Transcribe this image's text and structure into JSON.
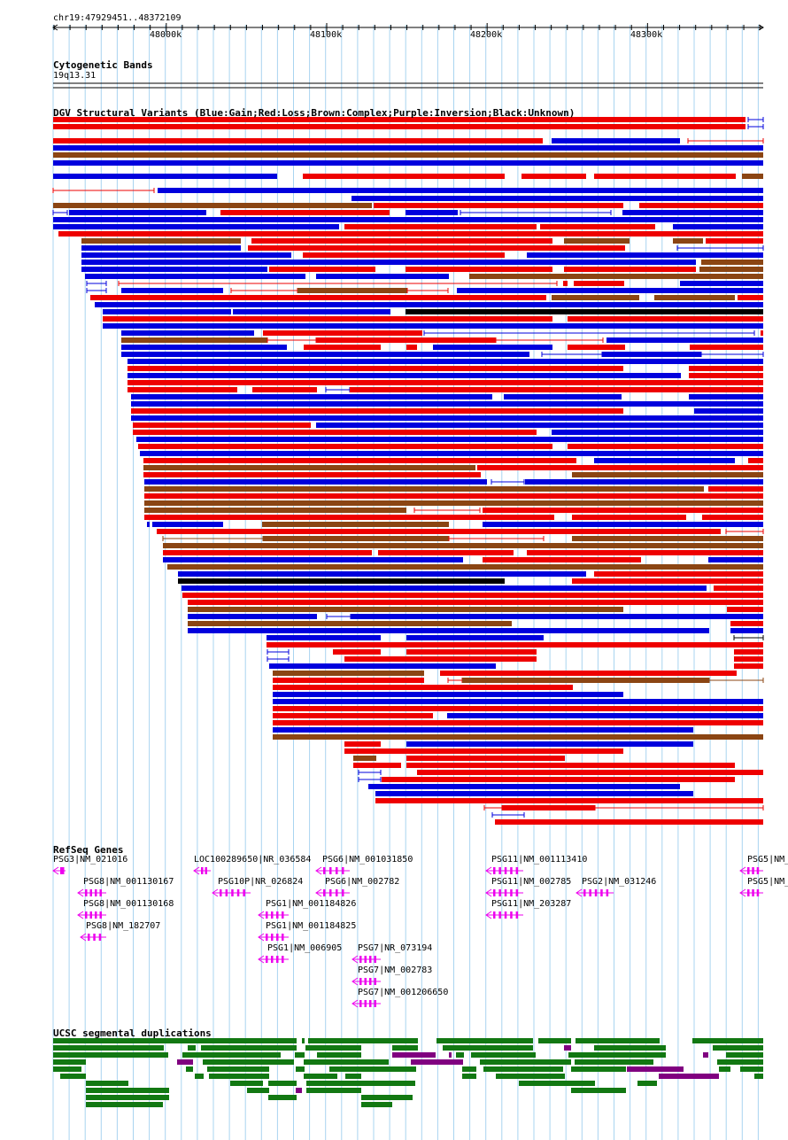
{
  "browser": {
    "location": "chr19:47929451..48372109",
    "range_start": 47929451,
    "range_end": 48372109,
    "ruler_ticks": [
      "48000k",
      "48100k",
      "48200k",
      "48300k"
    ],
    "ruler_tick_values": [
      48000000,
      48100000,
      48200000,
      48300000
    ]
  },
  "tracks": {
    "cytoband": {
      "title": "Cytogenetic Bands",
      "band_label": "19q13.31"
    },
    "dgv": {
      "title": "DGV Structural Variants (Blue:Gain;Red:Loss;Brown:Complex;Purple:Inversion;Black:Unknown)",
      "colors": {
        "gain": "#0000dd",
        "loss": "#ee0000",
        "complex": "#8b4513",
        "inversion": "#800080",
        "unknown": "#000000"
      }
    },
    "refseq": {
      "title": "RefSeq Genes",
      "color": "#ee00ee",
      "genes": [
        {
          "label": "PSG3|NM_021016"
        },
        {
          "label": "LOC100289650|NR_036584"
        },
        {
          "label": "PSG6|NM_001031850"
        },
        {
          "label": "PSG11|NM_001113410"
        },
        {
          "label": "PSG5|NM_"
        },
        {
          "label": "PSG8|NM_001130167"
        },
        {
          "label": "PSG10P|NR_026824"
        },
        {
          "label": "PSG6|NM_002782"
        },
        {
          "label": "PSG11|NM_002785"
        },
        {
          "label": "PSG2|NM_031246"
        },
        {
          "label": "PSG5|NM_"
        },
        {
          "label": "PSG8|NM_001130168"
        },
        {
          "label": "PSG1|NM_001184826"
        },
        {
          "label": "PSG11|NM_203287"
        },
        {
          "label": "PSG8|NM_182707"
        },
        {
          "label": "PSG1|NM_001184825"
        },
        {
          "label": "PSG1|NM_006905"
        },
        {
          "label": "PSG7|NR_073194"
        },
        {
          "label": "PSG7|NM_002783"
        },
        {
          "label": "PSG7|NM_001206650"
        }
      ]
    },
    "segdups": {
      "title": "UCSC segmental duplications",
      "colors": {
        "direct": "#127812",
        "inverted": "#800080"
      }
    }
  }
}
